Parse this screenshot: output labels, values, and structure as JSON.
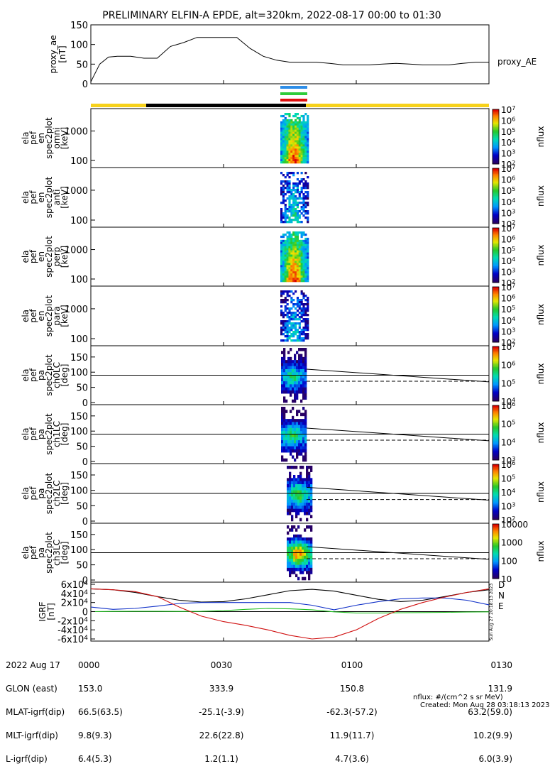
{
  "chart_data": {
    "type": "heatmap",
    "title": "PRELIMINARY ELFIN-A EPDE, alt=320km, 2022-08-17 00:00 to 01:30",
    "x_tick_labels": [
      "0000",
      "0030",
      "0100",
      "0130"
    ],
    "x_range_min": [
      0,
      90
    ],
    "proxy_ae": {
      "ylabel": "proxy_ae\n[nT]",
      "ylim": [
        0,
        150
      ],
      "yticks": [
        "150",
        "100",
        "50",
        "0"
      ],
      "series_name": "proxy_AE",
      "t_min": [
        0,
        2,
        4,
        6,
        9,
        12,
        15,
        18,
        21,
        24,
        27,
        30,
        33,
        36,
        39,
        42,
        45,
        48,
        51,
        54,
        57,
        60,
        63,
        66,
        69,
        72,
        75,
        78,
        81,
        84,
        87,
        90
      ],
      "values": [
        5,
        50,
        68,
        70,
        70,
        65,
        65,
        95,
        105,
        118,
        118,
        118,
        118,
        90,
        70,
        60,
        55,
        55,
        55,
        52,
        48,
        48,
        48,
        50,
        52,
        50,
        48,
        48,
        48,
        52,
        55,
        55
      ]
    },
    "bar_colors": {
      "yellow": "#f7d21c",
      "black": "#000000",
      "blue": "#2e8ee8",
      "green": "#2fcc3a",
      "red": "#e01010"
    },
    "energy_panels": [
      {
        "ylabel": "ela\npef\nen\nspec2plot\nomni\n[keV]",
        "yticks": [
          "1000",
          "100"
        ],
        "cbar_ticks": [
          "10^7",
          "10^6",
          "10^5",
          "10^4",
          "10^3",
          "10^2"
        ],
        "intensity": 1.0
      },
      {
        "ylabel": "ela\npef\nen\nspec2plot\nanti\n[keV]",
        "yticks": [
          "1000",
          "100"
        ],
        "cbar_ticks": [
          "10^7",
          "10^6",
          "10^5",
          "10^4",
          "10^3",
          "10^2"
        ],
        "intensity": 0.55
      },
      {
        "ylabel": "ela\npef\nen\nspec2plot\nperp\n[keV]",
        "yticks": [
          "1000",
          "100"
        ],
        "cbar_ticks": [
          "10^7",
          "10^6",
          "10^5",
          "10^4",
          "10^3",
          "10^2"
        ],
        "intensity": 1.0
      },
      {
        "ylabel": "ela\npef\nen\nspec2plot\npara\n[keV]",
        "yticks": [
          "1000",
          "100"
        ],
        "cbar_ticks": [
          "10^7",
          "10^6",
          "10^5",
          "10^4",
          "10^3",
          "10^2"
        ],
        "intensity": 0.5
      }
    ],
    "pa_panels": [
      {
        "ylabel": "ela\npef\npa\nspec2plot\nch0LC\n[deg]",
        "yticks": [
          "150",
          "100",
          "50",
          "0"
        ],
        "cbar_ticks": [
          "10^7",
          "10^6",
          "10^5",
          "10^4"
        ],
        "intensity": 0.55
      },
      {
        "ylabel": "ela\npef\npa\nspec2plot\nch1LC\n[deg]",
        "yticks": [
          "150",
          "100",
          "50",
          "0"
        ],
        "cbar_ticks": [
          "10^6",
          "10^5",
          "10^4",
          "10^3"
        ],
        "intensity": 0.6
      },
      {
        "ylabel": "ela\npef\npa\nspec2plot\nch2LC\n[deg]",
        "yticks": [
          "150",
          "100",
          "50",
          "0"
        ],
        "cbar_ticks": [
          "10^6",
          "10^5",
          "10^4",
          "10^3",
          "10^2"
        ],
        "intensity": 0.65
      },
      {
        "ylabel": "ela\npef\npa\nspec2plot\nch3LC\n[deg]",
        "yticks": [
          "150",
          "100",
          "50",
          "0"
        ],
        "cbar_ticks": [
          "10000",
          "1000",
          "100",
          "10"
        ],
        "intensity": 0.9
      }
    ],
    "colorbar_label": "nflux",
    "igrf": {
      "ylabel": "IGRF\n[nT]",
      "ylim": [
        -60000,
        60000
      ],
      "yticks": [
        "6x10^4",
        "4x10^4",
        "2x10^4",
        "0",
        "-2x10^4",
        "-4x10^4",
        "-6x10^4"
      ],
      "legend": [
        {
          "name": "D",
          "color": "#d01010"
        },
        {
          "name": "N",
          "color": "#1030c8"
        },
        {
          "name": "E",
          "color": "#20c020"
        }
      ],
      "t_min": [
        0,
        5,
        10,
        15,
        20,
        25,
        30,
        35,
        40,
        45,
        50,
        55,
        60,
        65,
        70,
        75,
        80,
        85,
        90
      ],
      "total": [
        50000,
        48000,
        42000,
        33000,
        25000,
        21000,
        22000,
        28000,
        37000,
        46000,
        49000,
        45000,
        36000,
        27000,
        22000,
        25000,
        33000,
        42000,
        48000
      ],
      "D": [
        50000,
        48000,
        44000,
        33000,
        10000,
        -10000,
        -22000,
        -30000,
        -40000,
        -52000,
        -60000,
        -56000,
        -40000,
        -15000,
        5000,
        20000,
        32000,
        42000,
        50000
      ],
      "N": [
        10000,
        5000,
        7000,
        12000,
        18000,
        20000,
        20000,
        20000,
        20000,
        20000,
        14000,
        4000,
        14000,
        22000,
        28000,
        30000,
        30000,
        25000,
        15000
      ],
      "E": [
        0,
        500,
        700,
        600,
        500,
        600,
        2000,
        5000,
        7000,
        6000,
        4000,
        -500,
        -3000,
        -3000,
        -2500,
        -2000,
        -1500,
        -1000,
        -500
      ]
    },
    "side_stamp": "Sun Aug 27 20:18:13 2023"
  },
  "footer": {
    "rows": [
      {
        "label": "2022 Aug 17",
        "values": [
          "0000",
          "0030",
          "0100",
          "0130"
        ]
      },
      {
        "label": "GLON (east)",
        "values": [
          "153.0",
          "333.9",
          "150.8",
          "131.9"
        ]
      },
      {
        "label": "MLAT-igrf(dip)",
        "values": [
          "66.5(63.5)",
          "-25.1(-3.9)",
          "-62.3(-57.2)",
          "63.2(59.0)"
        ]
      },
      {
        "label": "MLT-igrf(dip)",
        "values": [
          "9.8(9.3)",
          "22.6(22.8)",
          "11.9(11.7)",
          "10.2(9.9)"
        ]
      },
      {
        "label": "L-igrf(dip)",
        "values": [
          "6.4(5.3)",
          "1.2(1.1)",
          "4.7(3.6)",
          "6.0(3.9)"
        ]
      }
    ],
    "units_note": "nflux: #/(cm^2 s sr MeV)",
    "created": "Created: Mon Aug 28 03:18:13 2023"
  }
}
